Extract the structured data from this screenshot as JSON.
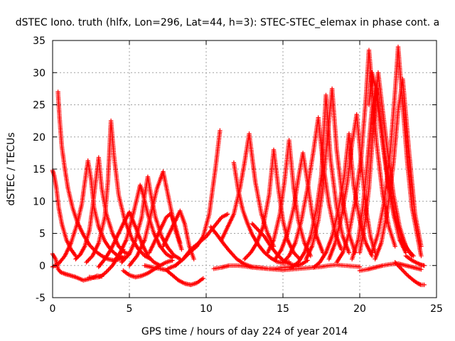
{
  "chart_data": {
    "type": "scatter",
    "title": "dSTEC Iono. truth (hlfx, Lon=296, Lat=44, h=3): STEC-STEC_elemax in phase cont. a",
    "xlabel": "GPS time / hours of day 224 of year 2014",
    "ylabel": "dSTEC  / TECUs",
    "xlim": [
      0,
      25
    ],
    "ylim": [
      -5,
      35
    ],
    "xticks": [
      0,
      5,
      10,
      15,
      20,
      25
    ],
    "yticks": [
      -5,
      0,
      5,
      10,
      15,
      20,
      25,
      30,
      35
    ],
    "grid": true,
    "marker": "plus",
    "colors": {
      "series": "#ff0000"
    },
    "series": [
      {
        "x": [
          0.0,
          0.2,
          0.35,
          0.5,
          0.8,
          1.1,
          1.5,
          2.0,
          2.5,
          2.9,
          3.2
        ],
        "y": [
          1.8,
          1.0,
          -0.5,
          -1.0,
          -1.3,
          -1.5,
          -1.8,
          -2.3,
          -2.0,
          -1.6,
          -1.7
        ]
      },
      {
        "x": [
          0.0,
          0.1,
          0.25,
          0.4,
          0.6,
          0.9,
          1.2,
          1.5
        ],
        "y": [
          14.8,
          14.0,
          12.0,
          9.0,
          6.5,
          4.0,
          2.5,
          1.5
        ]
      },
      {
        "x": [
          0.35,
          0.45,
          0.6,
          0.8,
          1.0,
          1.3,
          1.6,
          2.0,
          2.4,
          2.8,
          3.2,
          3.6,
          4.0,
          4.4,
          4.7
        ],
        "y": [
          27.0,
          23.0,
          18.5,
          15.0,
          12.0,
          9.0,
          6.8,
          4.8,
          3.2,
          2.2,
          1.5,
          1.0,
          0.8,
          1.0,
          1.3
        ]
      },
      {
        "x": [
          0.0,
          0.4,
          0.8,
          1.2,
          1.6,
          1.9,
          2.1,
          2.3,
          2.5,
          2.7,
          3.0,
          3.4,
          3.8,
          4.2,
          4.6
        ],
        "y": [
          -0.2,
          0.3,
          1.5,
          3.5,
          6.5,
          9.5,
          13.0,
          16.3,
          13.5,
          9.0,
          6.0,
          3.8,
          2.4,
          1.6,
          1.2
        ]
      },
      {
        "x": [
          1.5,
          1.8,
          2.1,
          2.4,
          2.6,
          2.8,
          3.0,
          3.2,
          3.5,
          3.9,
          4.3,
          4.7,
          5.0
        ],
        "y": [
          1.0,
          1.7,
          3.0,
          5.5,
          9.0,
          13.0,
          16.8,
          12.0,
          8.0,
          5.0,
          3.0,
          2.0,
          1.8
        ]
      },
      {
        "x": [
          2.2,
          2.6,
          3.0,
          3.4,
          3.6,
          3.8,
          4.0,
          4.3,
          4.7,
          5.2,
          5.6,
          6.0,
          6.4
        ],
        "y": [
          0.5,
          1.5,
          3.5,
          7.5,
          13.0,
          22.5,
          17.0,
          11.0,
          7.0,
          4.0,
          2.5,
          1.5,
          1.0
        ]
      },
      {
        "x": [
          2.4,
          2.7,
          3.0,
          3.2,
          3.5,
          3.9,
          4.3,
          4.6
        ],
        "y": [
          -1.8,
          -1.9,
          -1.8,
          -1.6,
          -1.0,
          0.0,
          1.5,
          2.5
        ]
      },
      {
        "x": [
          3.0,
          3.4,
          3.8,
          4.2,
          4.6,
          5.0,
          5.4,
          5.8,
          6.2,
          6.6,
          7.0
        ],
        "y": [
          -0.2,
          1.0,
          2.5,
          4.5,
          6.5,
          8.3,
          6.0,
          3.5,
          1.5,
          0.5,
          0.0
        ]
      },
      {
        "x": [
          4.0,
          4.4,
          4.8,
          5.2,
          5.5,
          5.7,
          5.9,
          6.2,
          6.6,
          7.0,
          7.4,
          7.8
        ],
        "y": [
          0.6,
          2.0,
          4.0,
          7.5,
          10.5,
          12.5,
          11.0,
          8.0,
          5.0,
          3.0,
          1.8,
          1.2
        ]
      },
      {
        "x": [
          4.5,
          5.0,
          5.4,
          5.8,
          6.0,
          6.2,
          6.4,
          6.7,
          7.1,
          7.5,
          7.9,
          8.3
        ],
        "y": [
          0.5,
          1.8,
          4.0,
          7.5,
          11.0,
          13.8,
          11.0,
          7.5,
          4.5,
          2.8,
          1.6,
          1.0
        ]
      },
      {
        "x": [
          4.6,
          5.0,
          5.4,
          5.8,
          6.2,
          6.6,
          7.0,
          7.4,
          7.8
        ],
        "y": [
          -0.8,
          -1.5,
          -1.8,
          -1.6,
          -1.2,
          -0.6,
          0.0,
          0.5,
          0.8
        ]
      },
      {
        "x": [
          5.0,
          5.5,
          6.0,
          6.4,
          6.8,
          7.2,
          7.6,
          8.0,
          8.4
        ],
        "y": [
          0.0,
          1.5,
          4.0,
          8.0,
          12.0,
          14.6,
          10.0,
          5.5,
          2.5
        ]
      },
      {
        "x": [
          6.0,
          6.5,
          7.0,
          7.4,
          7.8,
          8.2,
          8.6,
          9.0,
          9.4,
          9.8
        ],
        "y": [
          0.0,
          -0.3,
          -0.5,
          -0.7,
          -1.5,
          -2.3,
          -2.8,
          -3.0,
          -2.7,
          -2.0
        ]
      },
      {
        "x": [
          6.3,
          6.7,
          7.1,
          7.4,
          7.7,
          8.0,
          8.3
        ],
        "y": [
          2.0,
          4.0,
          6.0,
          7.5,
          8.1,
          6.0,
          3.5
        ]
      },
      {
        "x": [
          7.2,
          7.6,
          8.0,
          8.3,
          8.6,
          8.9,
          9.2
        ],
        "y": [
          3.0,
          5.0,
          7.0,
          8.5,
          6.5,
          3.0,
          1.0
        ]
      },
      {
        "x": [
          8.0,
          8.5,
          9.0,
          9.4,
          9.8,
          10.2,
          10.6,
          10.9
        ],
        "y": [
          0.0,
          1.0,
          2.2,
          3.0,
          4.5,
          8.0,
          15.0,
          21.0
        ]
      },
      {
        "x": [
          7.5,
          8.0,
          8.5,
          9.0,
          9.5,
          10.0,
          10.5,
          11.0,
          11.4
        ],
        "y": [
          -0.5,
          0.0,
          1.0,
          2.5,
          3.5,
          4.5,
          6.0,
          7.5,
          8.0
        ]
      },
      {
        "x": [
          10.3,
          10.7,
          11.1,
          11.5,
          12.0,
          12.5,
          13.0,
          13.5,
          14.0,
          14.5,
          15.0,
          15.5,
          16.0
        ],
        "y": [
          6.0,
          4.8,
          3.5,
          2.3,
          1.0,
          0.2,
          -0.2,
          -0.3,
          -0.5,
          -0.5,
          -0.3,
          -0.2,
          0.0
        ]
      },
      {
        "x": [
          10.5,
          11.0,
          11.5,
          12.0,
          12.5,
          13.0,
          13.5,
          14.0,
          14.5,
          15.0,
          15.5,
          16.0,
          16.5,
          17.0,
          17.5,
          18.0,
          18.5,
          19.0,
          19.5,
          20.0
        ],
        "y": [
          -0.5,
          -0.3,
          0.0,
          0.0,
          -0.1,
          -0.3,
          -0.4,
          -0.5,
          -0.6,
          -0.7,
          -0.6,
          -0.5,
          -0.4,
          -0.3,
          -0.2,
          0.0,
          0.1,
          0.0,
          -0.1,
          -0.2
        ]
      },
      {
        "x": [
          11.0,
          11.4,
          11.8,
          12.2,
          12.5,
          12.8,
          13.2,
          13.6,
          14.0,
          14.4
        ],
        "y": [
          4.0,
          6.0,
          8.0,
          12.0,
          16.0,
          20.5,
          13.0,
          8.0,
          5.0,
          3.0
        ]
      },
      {
        "x": [
          11.8,
          12.1,
          12.4,
          12.7,
          13.0,
          13.4,
          13.8,
          14.2,
          14.6,
          15.0,
          15.4
        ],
        "y": [
          16.0,
          11.5,
          8.5,
          6.5,
          4.8,
          3.2,
          2.0,
          1.2,
          0.6,
          0.4,
          0.6
        ]
      },
      {
        "x": [
          12.5,
          12.9,
          13.3,
          13.7,
          14.1,
          14.4,
          14.7,
          15.0,
          15.3,
          15.7,
          16.1
        ],
        "y": [
          1.0,
          2.0,
          3.5,
          6.0,
          11.0,
          18.0,
          12.0,
          7.0,
          4.0,
          2.0,
          1.0
        ]
      },
      {
        "x": [
          13.0,
          13.4,
          13.8,
          14.2,
          14.6,
          15.0,
          15.4,
          15.8,
          16.2,
          16.6
        ],
        "y": [
          6.5,
          5.5,
          4.5,
          3.0,
          1.8,
          0.8,
          0.3,
          0.0,
          0.2,
          0.8
        ]
      },
      {
        "x": [
          14.0,
          14.4,
          14.8,
          15.1,
          15.4,
          15.7,
          16.0,
          16.4,
          16.8
        ],
        "y": [
          2.0,
          4.0,
          8.0,
          13.0,
          19.5,
          12.0,
          7.0,
          3.5,
          1.5
        ]
      },
      {
        "x": [
          14.5,
          14.9,
          15.3,
          15.7,
          16.0,
          16.3,
          16.6,
          16.9,
          17.2,
          17.6
        ],
        "y": [
          1.0,
          2.5,
          5.0,
          9.0,
          13.5,
          17.5,
          13.0,
          8.0,
          4.5,
          2.0
        ]
      },
      {
        "x": [
          15.0,
          15.4,
          15.8,
          16.2,
          16.6,
          17.0,
          17.3,
          17.6,
          18.0,
          18.4,
          18.8
        ],
        "y": [
          0.5,
          1.5,
          3.5,
          7.0,
          12.0,
          18.0,
          23.0,
          16.0,
          9.5,
          5.0,
          2.5
        ]
      },
      {
        "x": [
          15.5,
          16.0,
          16.4,
          16.8,
          17.2,
          17.5,
          17.8,
          18.1,
          18.5,
          18.9,
          19.3
        ],
        "y": [
          -0.4,
          0.5,
          2.0,
          4.5,
          9.0,
          14.0,
          26.5,
          16.5,
          9.0,
          4.5,
          2.0
        ]
      },
      {
        "x": [
          16.5,
          16.9,
          17.3,
          17.6,
          17.9,
          18.2,
          18.5,
          18.9,
          19.3,
          19.7
        ],
        "y": [
          1.0,
          3.0,
          7.0,
          12.0,
          20.0,
          27.5,
          18.0,
          10.0,
          5.0,
          2.0
        ]
      },
      {
        "x": [
          17.0,
          17.4,
          17.8,
          18.2,
          18.6,
          19.0,
          19.3,
          19.6,
          20.0,
          20.4,
          20.8
        ],
        "y": [
          -0.3,
          0.5,
          2.0,
          4.5,
          8.5,
          14.0,
          20.5,
          12.5,
          7.0,
          3.5,
          1.5
        ]
      },
      {
        "x": [
          18.0,
          18.4,
          18.8,
          19.2,
          19.5,
          19.8,
          20.1,
          20.4,
          20.7,
          21.0
        ],
        "y": [
          1.0,
          3.5,
          7.5,
          13.0,
          19.0,
          23.5,
          16.0,
          9.0,
          4.5,
          2.0
        ]
      },
      {
        "x": [
          18.5,
          18.9,
          19.3,
          19.7,
          20.1,
          20.4,
          20.6,
          20.8,
          21.1,
          21.5,
          21.9,
          22.3
        ],
        "y": [
          0.5,
          2.0,
          5.0,
          10.0,
          17.0,
          26.0,
          33.5,
          28.0,
          19.0,
          11.0,
          6.0,
          3.0
        ]
      },
      {
        "x": [
          19.5,
          19.9,
          20.2,
          20.5,
          20.8,
          21.1,
          21.4,
          21.8,
          22.2,
          22.6,
          23.0
        ],
        "y": [
          1.0,
          4.0,
          9.0,
          16.0,
          24.5,
          27.5,
          22.0,
          14.0,
          8.0,
          4.0,
          2.0
        ]
      },
      {
        "x": [
          20.0,
          20.3,
          20.6,
          20.9,
          21.2,
          21.5,
          21.8,
          22.2,
          22.6,
          23.0,
          23.4
        ],
        "y": [
          2.0,
          6.0,
          12.0,
          22.0,
          30.0,
          24.0,
          18.0,
          11.0,
          6.0,
          3.0,
          1.5
        ]
      },
      {
        "x": [
          20.6,
          20.8,
          21.0,
          21.3,
          21.6,
          21.9,
          22.3,
          22.7,
          23.1,
          23.5
        ],
        "y": [
          25.0,
          30.0,
          28.0,
          22.5,
          17.0,
          12.0,
          7.5,
          4.5,
          2.5,
          1.5
        ]
      },
      {
        "x": [
          20.8,
          21.2,
          21.6,
          22.0,
          22.3,
          22.5,
          22.8,
          23.1,
          23.4,
          23.8,
          24.0
        ],
        "y": [
          2.0,
          5.0,
          10.0,
          18.0,
          27.0,
          34.0,
          25.0,
          16.0,
          9.0,
          4.0,
          1.5
        ]
      },
      {
        "x": [
          21.0,
          21.4,
          21.8,
          22.2,
          22.5,
          22.8,
          23.2,
          23.6,
          24.0
        ],
        "y": [
          1.0,
          3.5,
          8.5,
          16.0,
          24.0,
          29.0,
          18.0,
          8.0,
          3.0
        ]
      },
      {
        "x": [
          20.0,
          20.5,
          21.0,
          21.5,
          22.0,
          22.5,
          23.0,
          23.5,
          24.0
        ],
        "y": [
          -0.8,
          -0.6,
          -0.3,
          0.0,
          0.2,
          0.3,
          0.0,
          -0.3,
          -0.6
        ]
      },
      {
        "x": [
          22.3,
          22.7,
          23.1,
          23.5,
          23.8,
          24.0,
          24.2
        ],
        "y": [
          0.5,
          -0.5,
          -1.5,
          -2.3,
          -2.8,
          -3.0,
          -3.0
        ]
      },
      {
        "x": [
          23.0,
          23.4,
          23.8,
          24.0,
          24.2
        ],
        "y": [
          1.5,
          0.8,
          0.3,
          0.1,
          0.0
        ]
      }
    ]
  }
}
